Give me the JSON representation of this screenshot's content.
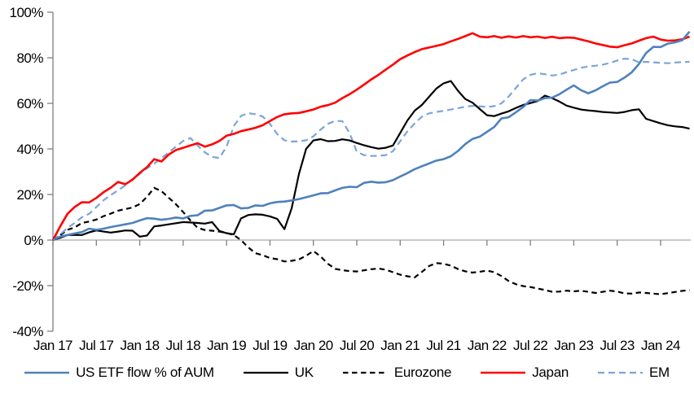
{
  "chart_data": {
    "type": "line",
    "title": "",
    "xlabel": "",
    "ylabel": "",
    "ylim": [
      -40,
      100
    ],
    "y_tick_step": 20,
    "y_tick_labels": [
      "100%",
      "80%",
      "60%",
      "40%",
      "20%",
      "0%",
      "-20%",
      "-40%"
    ],
    "x_unit": "months since Jan 2017, 6-month ticks",
    "x_tick_labels": [
      "Jan 17",
      "Jul 17",
      "Jan 18",
      "Jul 18",
      "Jan 19",
      "Jul 19",
      "Jan 20",
      "Jul 20",
      "Jan 21",
      "Jul 21",
      "Jan 22",
      "Jul 22",
      "Jan 23",
      "Jul 23",
      "Jan 24"
    ],
    "grid": "zero-baseline only",
    "legend_position": "bottom-center",
    "axis_color": "#808080",
    "zero_line_color": "#A6A6A6",
    "text_color": "#000000",
    "series": [
      {
        "name": "Eurozone",
        "color": "#000000",
        "style": "dashed",
        "width": 2.2,
        "dash": "6.5 4.5",
        "values": [
          0,
          2.1,
          4.5,
          5.5,
          7.5,
          8.1,
          9.0,
          10.5,
          11.6,
          12.9,
          13.6,
          14.3,
          15.8,
          19.0,
          22.9,
          21.5,
          18.6,
          15.7,
          12.3,
          8.6,
          5.4,
          4.4,
          4.1,
          3.7,
          3.1,
          2.2,
          0.0,
          -3.2,
          -5.8,
          -6.6,
          -7.9,
          -8.4,
          -9.4,
          -9.1,
          -8.5,
          -6.9,
          -4.8,
          -7.2,
          -10.4,
          -12.6,
          -13.2,
          -13.6,
          -13.8,
          -13.3,
          -12.8,
          -12.5,
          -13.0,
          -14.1,
          -15.2,
          -15.9,
          -16.4,
          -14.0,
          -11.4,
          -10.1,
          -10.4,
          -11.2,
          -12.7,
          -13.7,
          -14.3,
          -13.9,
          -13.4,
          -14.1,
          -15.8,
          -18.0,
          -19.4,
          -20.2,
          -20.6,
          -21.3,
          -21.9,
          -22.7,
          -22.6,
          -22.2,
          -22.5,
          -22.2,
          -22.7,
          -23.2,
          -22.7,
          -22.2,
          -22.6,
          -23.4,
          -23.5,
          -23.0,
          -23.2,
          -23.5,
          -23.8,
          -23.3,
          -22.8,
          -22.3,
          -22.0
        ]
      },
      {
        "name": "EM",
        "color": "#7CA5D8",
        "style": "dashed",
        "width": 2.2,
        "dash": "8 5",
        "values": [
          0,
          2.5,
          5.3,
          7.5,
          10.0,
          11.5,
          14.5,
          17.5,
          19.8,
          21.8,
          24.0,
          26.8,
          29.0,
          31.5,
          33.5,
          36.0,
          38.5,
          41.0,
          43.5,
          44.8,
          41.5,
          38.5,
          36.5,
          36.0,
          41.0,
          50.0,
          54.5,
          55.7,
          55.2,
          54.2,
          51.0,
          46.5,
          43.8,
          43.2,
          43.4,
          43.8,
          45.5,
          48.5,
          51.0,
          52.3,
          52.2,
          47.0,
          38.8,
          37.3,
          36.9,
          37.0,
          37.3,
          39.0,
          43.4,
          47.7,
          51.2,
          54.1,
          55.6,
          56.2,
          56.7,
          57.3,
          57.9,
          58.5,
          58.9,
          58.7,
          58.4,
          58.8,
          60.0,
          63.0,
          66.8,
          70.5,
          72.5,
          73.2,
          72.8,
          72.2,
          72.6,
          73.7,
          74.6,
          75.6,
          76.2,
          76.5,
          77.0,
          77.7,
          78.8,
          79.6,
          79.4,
          78.0,
          78.2,
          78.0,
          77.8,
          77.6,
          77.9,
          78.1,
          78.2
        ]
      },
      {
        "name": "Japan",
        "color": "#FF0000",
        "style": "solid",
        "width": 2.6,
        "dash": "",
        "values": [
          0,
          6.0,
          11.5,
          14.5,
          16.6,
          16.5,
          18.5,
          21.0,
          23.0,
          25.5,
          24.5,
          26.5,
          29.5,
          32.0,
          35.5,
          34.5,
          37.5,
          39.5,
          40.5,
          41.5,
          42.5,
          41.0,
          42.0,
          43.5,
          45.8,
          46.6,
          47.8,
          48.5,
          49.3,
          50.4,
          52.2,
          54.0,
          55.2,
          55.6,
          55.8,
          56.5,
          57.3,
          58.5,
          59.2,
          60.3,
          62.3,
          64.0,
          66.0,
          68.2,
          70.5,
          72.5,
          74.8,
          77.0,
          79.4,
          81.0,
          82.5,
          83.8,
          84.5,
          85.2,
          86.0,
          87.2,
          88.3,
          89.5,
          90.8,
          89.3,
          89.0,
          89.5,
          88.8,
          89.4,
          88.9,
          89.5,
          89.0,
          89.3,
          88.7,
          89.2,
          88.6,
          88.9,
          88.8,
          88.0,
          87.2,
          86.3,
          85.6,
          84.9,
          84.6,
          85.5,
          86.3,
          87.5,
          88.6,
          89.3,
          88.0,
          87.5,
          87.6,
          88.1,
          89.3
        ]
      },
      {
        "name": "UK",
        "color": "#000000",
        "style": "solid",
        "width": 2.2,
        "dash": "",
        "values": [
          0,
          1.0,
          2.2,
          2.3,
          2.2,
          3.4,
          4.2,
          3.7,
          3.3,
          3.7,
          4.2,
          4.1,
          1.5,
          2.0,
          6.0,
          6.4,
          6.9,
          7.4,
          7.9,
          7.7,
          7.5,
          7.2,
          7.9,
          4.0,
          3.0,
          2.5,
          9.5,
          11.0,
          11.3,
          11.1,
          10.4,
          9.3,
          4.8,
          14.0,
          29.0,
          40.0,
          43.7,
          44.3,
          43.4,
          43.5,
          44.2,
          43.7,
          42.6,
          41.6,
          40.8,
          40.1,
          40.5,
          41.5,
          47.0,
          52.5,
          56.8,
          59.3,
          62.9,
          66.5,
          68.8,
          69.8,
          65.5,
          61.9,
          60.3,
          57.5,
          54.8,
          54.4,
          55.5,
          56.5,
          58.0,
          59.3,
          60.1,
          61.0,
          63.4,
          62.3,
          60.8,
          59.0,
          58.1,
          57.3,
          56.9,
          56.6,
          56.2,
          56.0,
          55.8,
          56.2,
          57.0,
          57.4,
          53.2,
          52.2,
          51.2,
          50.4,
          49.9,
          49.6,
          48.9
        ]
      },
      {
        "name": "US ETF flow % of AUM",
        "color": "#4F81BD",
        "style": "solid",
        "width": 2.6,
        "dash": "",
        "values": [
          0,
          1.5,
          2.2,
          2.9,
          3.5,
          5.0,
          4.5,
          5.0,
          5.7,
          6.3,
          6.9,
          7.5,
          8.6,
          9.6,
          9.4,
          8.9,
          9.3,
          9.9,
          9.5,
          10.6,
          10.9,
          12.9,
          13.0,
          14.1,
          15.2,
          15.4,
          13.9,
          14.1,
          15.2,
          15.0,
          16.1,
          16.7,
          16.9,
          17.4,
          18.0,
          18.8,
          19.6,
          20.5,
          20.6,
          21.8,
          22.9,
          23.4,
          23.2,
          25.1,
          25.6,
          25.2,
          25.4,
          26.3,
          27.9,
          29.4,
          31.1,
          32.4,
          33.6,
          34.9,
          35.5,
          36.8,
          39.1,
          42.1,
          44.4,
          45.4,
          47.5,
          49.6,
          53.4,
          53.9,
          56.1,
          58.4,
          61.4,
          61.2,
          62.3,
          62.5,
          64.0,
          66.0,
          67.9,
          65.8,
          64.4,
          65.7,
          67.5,
          69.1,
          69.4,
          71.3,
          73.6,
          77.3,
          82.1,
          84.8,
          84.7,
          86.2,
          86.8,
          87.7,
          91.5
        ]
      }
    ],
    "legend_order": [
      "US ETF flow % of AUM",
      "UK",
      "Eurozone",
      "Japan",
      "EM"
    ]
  }
}
